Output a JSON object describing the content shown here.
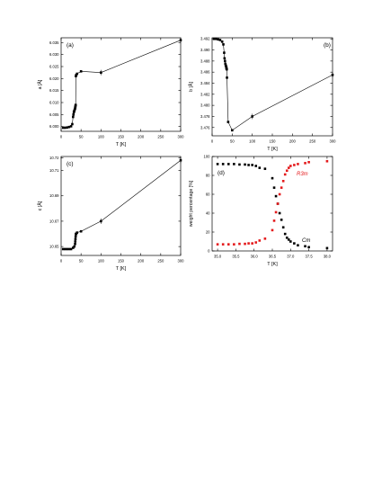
{
  "chart_data": [
    {
      "type": "line",
      "panel_label": "(a)",
      "xlabel": "T [K]",
      "ylabel": "a [Å]",
      "xlim": [
        0,
        300
      ],
      "ylim": [
        5.998,
        6.037
      ],
      "xticks": [
        0,
        50,
        100,
        150,
        200,
        250,
        300
      ],
      "yticks": [
        6.0,
        6.005,
        6.01,
        6.015,
        6.02,
        6.025,
        6.03,
        6.035
      ],
      "ytick_labels": [
        "6.000",
        "6.005",
        "6.010",
        "6.015",
        "6.020",
        "6.025",
        "6.030",
        "6.035"
      ],
      "series": [
        {
          "color": "#000000",
          "x": [
            5,
            10,
            15,
            20,
            25,
            28,
            30,
            31,
            32,
            33,
            34,
            35,
            35.5,
            36,
            36.5,
            37,
            38,
            40,
            50,
            100,
            300
          ],
          "y": [
            5.9995,
            5.9995,
            5.9996,
            5.9998,
            6.0001,
            6.001,
            6.004,
            6.005,
            6.006,
            6.0065,
            6.007,
            6.0075,
            6.008,
            6.0085,
            6.009,
            6.021,
            6.0215,
            6.022,
            6.023,
            6.0225,
            6.036
          ]
        }
      ]
    },
    {
      "type": "line",
      "panel_label": "(b)",
      "xlabel": "T [K]",
      "ylabel": "b [Å]",
      "xlim": [
        0,
        300
      ],
      "ylim": [
        3.4745,
        3.4922
      ],
      "xticks": [
        0,
        50,
        100,
        150,
        200,
        250,
        300
      ],
      "yticks": [
        3.476,
        3.478,
        3.48,
        3.482,
        3.484,
        3.486,
        3.488,
        3.49,
        3.492
      ],
      "ytick_labels": [
        "3.476",
        "3.478",
        "3.480",
        "3.482",
        "3.484",
        "3.486",
        "3.488",
        "3.490",
        "3.492"
      ],
      "series": [
        {
          "color": "#000000",
          "x": [
            5,
            10,
            15,
            20,
            25,
            28,
            30,
            31,
            32,
            33,
            34,
            35,
            35.5,
            36,
            36.5,
            37,
            40,
            50,
            100,
            300
          ],
          "y": [
            3.492,
            3.492,
            3.4919,
            3.4918,
            3.4915,
            3.491,
            3.4895,
            3.4885,
            3.488,
            3.4875,
            3.4872,
            3.487,
            3.4868,
            3.4866,
            3.4865,
            3.485,
            3.477,
            3.4755,
            3.478,
            3.4855
          ]
        }
      ]
    },
    {
      "type": "line",
      "panel_label": "(c)",
      "xlabel": "T [K]",
      "ylabel": "c [Å]",
      "xlim": [
        0,
        300
      ],
      "ylim": [
        10.643,
        10.721
      ],
      "xticks": [
        0,
        50,
        100,
        150,
        200,
        250,
        300
      ],
      "yticks": [
        10.65,
        10.67,
        10.69,
        10.71,
        10.72
      ],
      "ytick_labels": [
        "10.65",
        "10.67",
        "10.69",
        "10.71",
        "10.72"
      ],
      "series": [
        {
          "color": "#000000",
          "x": [
            5,
            10,
            15,
            20,
            25,
            30,
            33,
            35,
            35.5,
            36,
            36.5,
            37,
            38,
            40,
            50,
            100,
            300
          ],
          "y": [
            10.648,
            10.648,
            10.648,
            10.648,
            10.648,
            10.649,
            10.65,
            10.652,
            10.654,
            10.656,
            10.658,
            10.66,
            10.66,
            10.661,
            10.662,
            10.67,
            10.718
          ]
        }
      ]
    },
    {
      "type": "scatter",
      "panel_label": "(d)",
      "xlabel": "T [K]",
      "ylabel": "weight percentage [%]",
      "xlim": [
        34.85,
        38.15
      ],
      "ylim": [
        0,
        100
      ],
      "xticks": [
        35.0,
        35.5,
        36.0,
        36.5,
        37.0,
        37.5,
        38.0
      ],
      "xtick_labels": [
        "35.0",
        "35.5",
        "36.0",
        "36.5",
        "37.0",
        "37.5",
        "38.0"
      ],
      "yticks": [
        0,
        20,
        40,
        60,
        80,
        100
      ],
      "series": [
        {
          "name": "Cm",
          "color": "#000000",
          "x": [
            35.0,
            35.15,
            35.3,
            35.45,
            35.6,
            35.75,
            35.85,
            35.95,
            36.05,
            36.15,
            36.3,
            36.5,
            36.55,
            36.6,
            36.65,
            36.7,
            36.75,
            36.8,
            36.85,
            36.9,
            36.95,
            37.0,
            37.1,
            37.2,
            37.4,
            37.5,
            38.0
          ],
          "y": [
            92,
            92,
            92,
            92,
            91.5,
            91.5,
            91,
            91,
            90,
            88,
            87,
            77,
            67,
            58,
            50,
            40,
            33,
            25,
            18,
            14,
            12,
            10,
            8,
            6,
            5,
            4,
            3
          ]
        },
        {
          "name": "R3m",
          "color": "#e41a1c",
          "x": [
            35.0,
            35.15,
            35.3,
            35.45,
            35.6,
            35.75,
            35.85,
            35.95,
            36.05,
            36.15,
            36.3,
            36.5,
            36.55,
            36.6,
            36.65,
            36.7,
            36.75,
            36.8,
            36.85,
            36.9,
            36.95,
            37.0,
            37.1,
            37.2,
            37.4,
            37.5,
            38.0
          ],
          "y": [
            7,
            7,
            7,
            7,
            7.5,
            7.5,
            8,
            8,
            9,
            11,
            13,
            22,
            32,
            41,
            50,
            60,
            67,
            74,
            81,
            85,
            88,
            90,
            91,
            92,
            93,
            94,
            95
          ]
        }
      ],
      "annotations": [
        {
          "text": "R3m",
          "color": "#e41a1c"
        },
        {
          "text": "Cm",
          "color": "#000000"
        }
      ]
    }
  ]
}
